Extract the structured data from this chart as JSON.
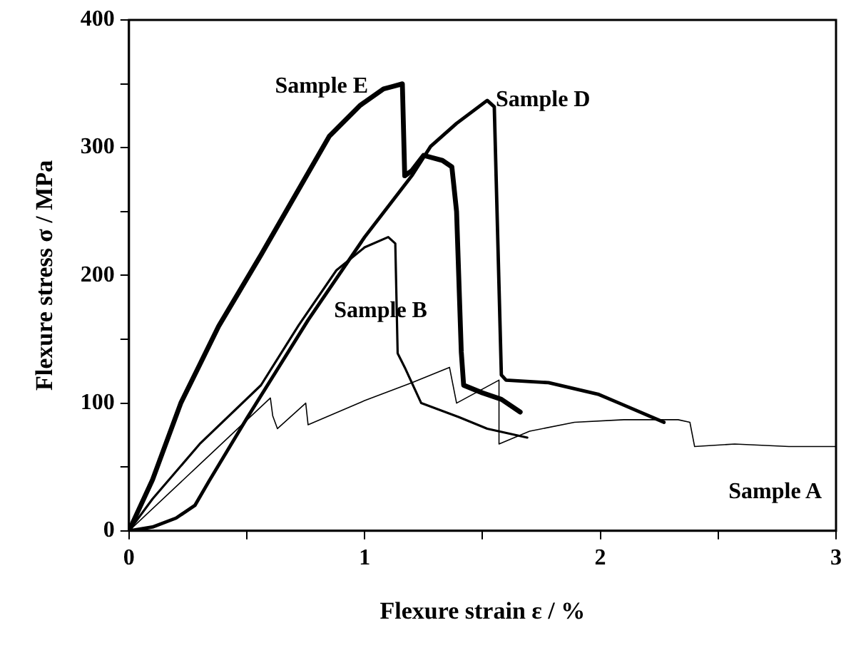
{
  "chart_data": {
    "type": "line",
    "xlabel": "Flexure strain ε / %",
    "ylabel": "Flexure stress σ / MPa",
    "xlim": [
      0,
      3
    ],
    "xticks": [
      0,
      {
        "value": 0.5,
        "label": null
      },
      1,
      {
        "value": 1.5,
        "label": null
      },
      2,
      {
        "value": 2.5,
        "label": null
      },
      3
    ],
    "ylim": [
      0,
      400
    ],
    "yticks": [
      0,
      {
        "value": 50,
        "label": null
      },
      100,
      {
        "value": 150,
        "label": null
      },
      200,
      {
        "value": 250,
        "label": null
      },
      300,
      {
        "value": 350,
        "label": null
      },
      400
    ],
    "grid": false,
    "legend": false,
    "marker": "none",
    "line_style": "solid",
    "series": [
      {
        "name": "Sample A",
        "color": "#000000",
        "x": [
          0,
          0.3,
          0.6,
          0.61,
          0.63,
          0.75,
          0.76,
          1.0,
          1.2,
          1.36,
          1.39,
          1.57,
          1.57,
          1.7,
          1.89,
          2.1,
          2.33,
          2.38,
          2.4,
          2.57,
          2.8,
          3.0
        ],
        "values": [
          0,
          52,
          104,
          90,
          80,
          100,
          83,
          102,
          116,
          128,
          100,
          118,
          68,
          78,
          85,
          87,
          87,
          85,
          66,
          68,
          66,
          66
        ]
      },
      {
        "name": "Sample B",
        "color": "#000000",
        "x": [
          0,
          0.1,
          0.3,
          0.56,
          0.72,
          0.88,
          1.0,
          1.1,
          1.13,
          1.14,
          1.17,
          1.24,
          1.4,
          1.52,
          1.69
        ],
        "values": [
          0,
          25,
          68,
          114,
          161,
          204,
          222,
          230,
          225,
          139,
          128,
          100,
          89,
          80,
          73
        ]
      },
      {
        "name": "Sample D",
        "color": "#000000",
        "x": [
          0,
          0.1,
          0.2,
          0.28,
          0.34,
          0.5,
          0.76,
          1.0,
          1.2,
          1.28,
          1.39,
          1.52,
          1.55,
          1.58,
          1.6,
          1.78,
          1.99,
          2.08,
          2.27
        ],
        "values": [
          0,
          3,
          10,
          20,
          39,
          88,
          165,
          230,
          278,
          301,
          319,
          337,
          332,
          122,
          118,
          116,
          107,
          100,
          85
        ]
      },
      {
        "name": "Sample E",
        "color": "#000000",
        "x": [
          0,
          0.1,
          0.22,
          0.38,
          0.56,
          0.85,
          0.98,
          1.08,
          1.12,
          1.16,
          1.17,
          1.2,
          1.25,
          1.33,
          1.37,
          1.39,
          1.41,
          1.42,
          1.5,
          1.58,
          1.66
        ],
        "values": [
          0,
          40,
          100,
          160,
          216,
          309,
          333,
          346,
          348,
          350,
          278,
          282,
          294,
          290,
          285,
          250,
          140,
          114,
          108,
          103,
          93
        ]
      }
    ]
  }
}
